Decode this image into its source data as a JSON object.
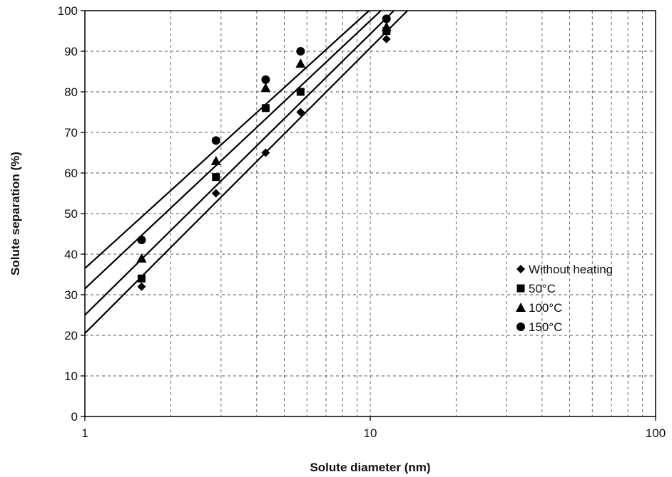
{
  "chart_data": {
    "type": "scatter",
    "title": "",
    "xlabel": "Solute diameter (nm)",
    "ylabel": "Solute separation (%)",
    "xscale": "log",
    "xlim": [
      1,
      100
    ],
    "ylim": [
      0,
      100
    ],
    "xticks": [
      1,
      10,
      100
    ],
    "xtick_labels": [
      "1",
      "10",
      "100"
    ],
    "yticks": [
      0,
      10,
      20,
      30,
      40,
      50,
      60,
      70,
      80,
      90,
      100
    ],
    "ytick_labels": [
      "0",
      "10",
      "20",
      "30",
      "40",
      "50",
      "60",
      "70",
      "80",
      "90",
      "100"
    ],
    "grid": "dashed major and minor",
    "legend_position": "right-middle",
    "series": [
      {
        "name": "Without heating",
        "marker": "diamond",
        "x": [
          1.58,
          2.88,
          4.3,
          5.7,
          11.4
        ],
        "y": [
          32,
          55,
          65,
          75,
          93
        ],
        "trendline": {
          "x": [
            1,
            13.5
          ],
          "y": [
            20.5,
            100
          ]
        }
      },
      {
        "name": "50°C",
        "marker": "square",
        "x": [
          1.58,
          2.88,
          4.3,
          5.7,
          11.4
        ],
        "y": [
          34,
          59,
          76,
          80,
          95
        ],
        "trendline": {
          "x": [
            1,
            12.1
          ],
          "y": [
            25,
            100
          ]
        }
      },
      {
        "name": "100°C",
        "marker": "triangle",
        "x": [
          1.58,
          2.88,
          4.3,
          5.7,
          11.4
        ],
        "y": [
          39,
          63,
          81,
          87,
          96
        ],
        "trendline": {
          "x": [
            1,
            10.9
          ],
          "y": [
            31.5,
            100
          ]
        }
      },
      {
        "name": "150°C",
        "marker": "circle",
        "x": [
          1.58,
          2.88,
          4.3,
          5.7,
          11.4
        ],
        "y": [
          43.5,
          68,
          83,
          90,
          98
        ],
        "trendline": {
          "x": [
            1,
            9.9
          ],
          "y": [
            36.5,
            100
          ]
        }
      }
    ]
  }
}
